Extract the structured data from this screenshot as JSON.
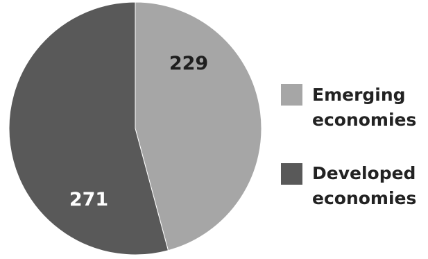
{
  "chart_data": {
    "type": "pie",
    "slices": [
      {
        "name": "Emerging economies",
        "value": 229,
        "label": "229",
        "color": "#a6a6a6",
        "label_color": "#1f1f1f"
      },
      {
        "name": "Developed economies",
        "value": 271,
        "label": "271",
        "color": "#595959",
        "label_color": "#ffffff"
      }
    ],
    "start_angle_deg": 0,
    "direction": "clockwise",
    "legend": {
      "position": "right",
      "entries": [
        {
          "lines": [
            "Emerging",
            "economies"
          ],
          "color": "#a6a6a6"
        },
        {
          "lines": [
            "Developed",
            "economies"
          ],
          "color": "#595959"
        }
      ]
    }
  }
}
